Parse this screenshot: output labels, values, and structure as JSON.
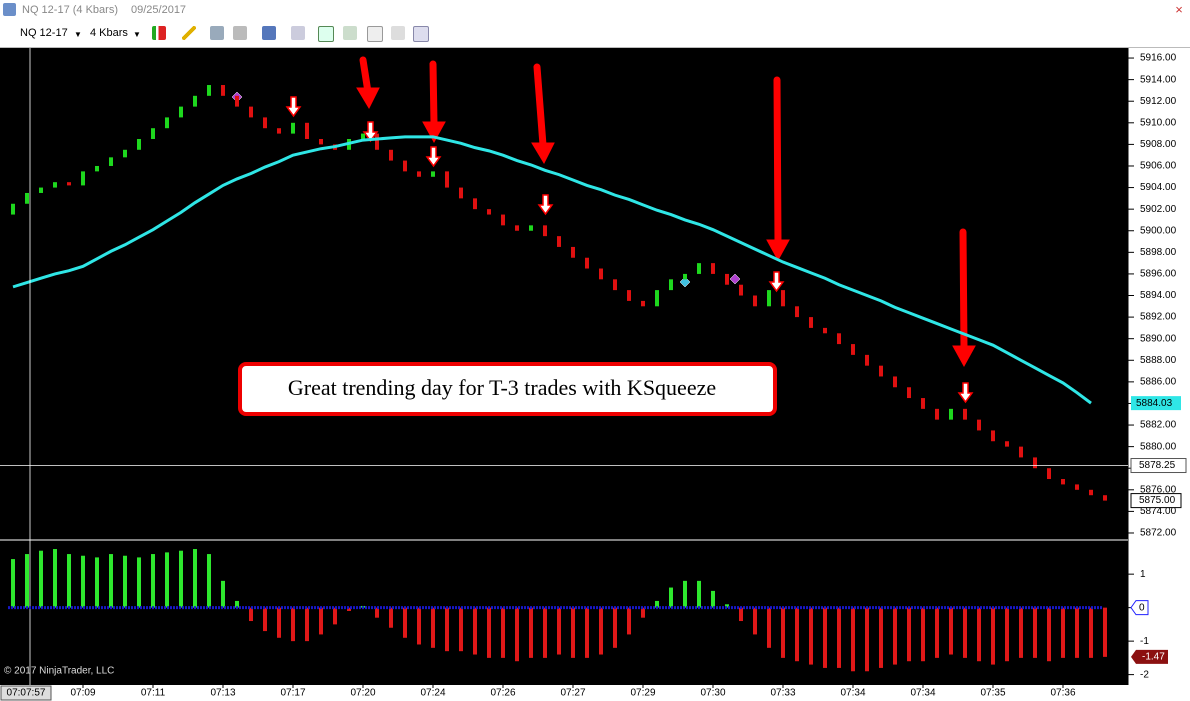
{
  "window": {
    "title": "NQ 12-17 (4 Kbars)",
    "date": "09/25/2017"
  },
  "toolbar": {
    "instrument": "NQ 12-17",
    "period": "4 Kbars"
  },
  "copyright": "© 2017 NinjaTrader, LLC",
  "annotation": "Great trending day for T-3 trades with KSqueeze",
  "crosshair": {
    "price": 5878.25,
    "time": "07:07:57"
  },
  "chart_data": [
    {
      "type": "candlestick",
      "categories": [
        null,
        null,
        null,
        null,
        null,
        "07:09",
        null,
        null,
        null,
        null,
        "07:11",
        null,
        null,
        null,
        null,
        "07:13",
        null,
        null,
        null,
        null,
        "07:17",
        null,
        null,
        null,
        null,
        "07:20",
        null,
        null,
        null,
        null,
        "07:24",
        null,
        null,
        null,
        null,
        "07:26",
        null,
        null,
        null,
        null,
        "07:27",
        null,
        null,
        null,
        null,
        "07:29",
        null,
        null,
        null,
        null,
        "07:30",
        null,
        null,
        null,
        null,
        "07:33",
        null,
        null,
        null,
        null,
        "07:34",
        null,
        null,
        null,
        null,
        "07:34",
        null,
        null,
        null,
        null,
        "07:35",
        null,
        null,
        null,
        null,
        "07:36",
        null,
        null,
        null
      ],
      "open": [
        5901.5,
        5902.5,
        5903.5,
        5904,
        5904.5,
        5904.2,
        5905.5,
        5906,
        5906.8,
        5907.5,
        5908.5,
        5909.5,
        5910.5,
        5911.5,
        5912.5,
        5913.5,
        5912.5,
        5911.5,
        5910.5,
        5909.5,
        5909,
        5910,
        5908.5,
        5908,
        5907.5,
        5908.5,
        5909,
        5907.5,
        5906.5,
        5905.5,
        5905,
        5905.5,
        5904,
        5903,
        5902,
        5901.5,
        5900.5,
        5900,
        5900.5,
        5899.5,
        5898.5,
        5897.5,
        5896.5,
        5895.5,
        5894.5,
        5893.5,
        5893,
        5894.5,
        5895.5,
        5896,
        5897,
        5896,
        5895,
        5894,
        5893,
        5894.5,
        5893,
        5892,
        5891,
        5890.5,
        5889.5,
        5888.5,
        5887.5,
        5886.5,
        5885.5,
        5884.5,
        5883.5,
        5882.5,
        5883.5,
        5882.5,
        5881.5,
        5880.5,
        5880,
        5879,
        5878,
        5877,
        5876.5,
        5876,
        5875.5
      ],
      "close": [
        5902.5,
        5903.5,
        5904,
        5904.5,
        5904.2,
        5905.5,
        5906,
        5906.8,
        5907.5,
        5908.5,
        5909.5,
        5910.5,
        5911.5,
        5912.5,
        5913.5,
        5912.5,
        5911.5,
        5910.5,
        5909.5,
        5909,
        5910,
        5908.5,
        5908,
        5907.5,
        5908.5,
        5909,
        5907.5,
        5906.5,
        5905.5,
        5905,
        5905.5,
        5904,
        5903,
        5902,
        5901.5,
        5900.5,
        5900,
        5900.5,
        5899.5,
        5898.5,
        5897.5,
        5896.5,
        5895.5,
        5894.5,
        5893.5,
        5893,
        5894.5,
        5895.5,
        5896,
        5897,
        5896,
        5895,
        5894,
        5893,
        5894.5,
        5893,
        5892,
        5891,
        5890.5,
        5889.5,
        5888.5,
        5887.5,
        5886.5,
        5885.5,
        5884.5,
        5883.5,
        5882.5,
        5883.5,
        5882.5,
        5881.5,
        5880.5,
        5880,
        5879,
        5878,
        5877,
        5876.5,
        5876,
        5875.5,
        5875
      ],
      "up_color": "#1ed81e",
      "down_color": "#e01010",
      "ma": {
        "color": "#2fe6e6",
        "values": [
          5894.8,
          5895.2,
          5895.6,
          5896.0,
          5896.3,
          5896.7,
          5897.4,
          5898.1,
          5898.7,
          5899.4,
          5900.1,
          5900.9,
          5901.7,
          5902.6,
          5903.4,
          5904.2,
          5904.8,
          5905.3,
          5905.9,
          5906.4,
          5907.0,
          5907.3,
          5907.6,
          5907.8,
          5908.1,
          5908.4,
          5908.5,
          5908.6,
          5908.7,
          5908.7,
          5908.7,
          5908.4,
          5908.1,
          5907.7,
          5907.4,
          5907.0,
          5906.5,
          5906.1,
          5905.6,
          5905.2,
          5904.7,
          5904.2,
          5903.8,
          5903.3,
          5902.9,
          5902.4,
          5901.9,
          5901.5,
          5901.0,
          5900.6,
          5900.1,
          5899.5,
          5898.9,
          5898.3,
          5897.7,
          5897.1,
          5896.6,
          5896.1,
          5895.6,
          5895.0,
          5894.5,
          5894.0,
          5893.5,
          5892.9,
          5892.4,
          5891.9,
          5891.4,
          5890.9,
          5890.4,
          5889.9,
          5889.4,
          5888.7,
          5888.0,
          5887.3,
          5886.6,
          5885.9,
          5885.0,
          5884.03,
          null
        ]
      },
      "current_price": {
        "value": 5875,
        "label": "5875.00"
      },
      "ylim": [
        5871.35,
        5916.93
      ],
      "yticks": [
        {
          "value": 5872,
          "label": "5872.00"
        },
        {
          "value": 5874,
          "label": "5874.00"
        },
        {
          "value": 5876,
          "label": "5876.00"
        },
        {
          "value": 5878,
          "label": "5878.00"
        },
        {
          "value": 5880,
          "label": "5880.00"
        },
        {
          "value": 5882,
          "label": "5882.00"
        },
        {
          "value": 5884,
          "label": "5884.00"
        },
        {
          "value": 5886,
          "label": "5886.00"
        },
        {
          "value": 5888,
          "label": "5888.00"
        },
        {
          "value": 5890,
          "label": "5890.00"
        },
        {
          "value": 5892,
          "label": "5892.00"
        },
        {
          "value": 5894,
          "label": "5894.00"
        },
        {
          "value": 5896,
          "label": "5896.00"
        },
        {
          "value": 5898,
          "label": "5898.00"
        },
        {
          "value": 5900,
          "label": "5900.00"
        },
        {
          "value": 5902,
          "label": "5902.00"
        },
        {
          "value": 5904,
          "label": "5904.00"
        },
        {
          "value": 5906,
          "label": "5906.00"
        },
        {
          "value": 5908,
          "label": "5908.00"
        },
        {
          "value": 5910,
          "label": "5910.00"
        },
        {
          "value": 5912,
          "label": "5912.00"
        },
        {
          "value": 5914,
          "label": "5914.00"
        },
        {
          "value": 5916,
          "label": "5916.00"
        }
      ],
      "grid": false
    },
    {
      "type": "bar",
      "values": [
        1.45,
        1.6,
        1.7,
        1.75,
        1.6,
        1.55,
        1.5,
        1.6,
        1.55,
        1.5,
        1.6,
        1.65,
        1.7,
        1.75,
        1.6,
        0.8,
        0.2,
        -0.4,
        -0.7,
        -0.9,
        -1.0,
        -1.0,
        -0.8,
        -0.5,
        -0.1,
        0.05,
        -0.3,
        -0.6,
        -0.9,
        -1.1,
        -1.2,
        -1.3,
        -1.3,
        -1.4,
        -1.5,
        -1.5,
        -1.6,
        -1.5,
        -1.5,
        -1.4,
        -1.5,
        -1.5,
        -1.4,
        -1.2,
        -0.8,
        -0.3,
        0.2,
        0.6,
        0.8,
        0.8,
        0.5,
        0.1,
        -0.4,
        -0.8,
        -1.2,
        -1.5,
        -1.6,
        -1.7,
        -1.8,
        -1.8,
        -1.9,
        -1.9,
        -1.8,
        -1.7,
        -1.6,
        -1.6,
        -1.5,
        -1.4,
        -1.5,
        -1.6,
        -1.7,
        -1.6,
        -1.5,
        -1.5,
        -1.6,
        -1.5,
        -1.5,
        -1.5,
        -1.47
      ],
      "up_color": "#2ee82e",
      "down_color": "#e01818",
      "ylim": [
        -2.31,
        1.99
      ],
      "yticks": [
        1,
        0,
        -1,
        -2
      ],
      "grid": false
    }
  ]
}
